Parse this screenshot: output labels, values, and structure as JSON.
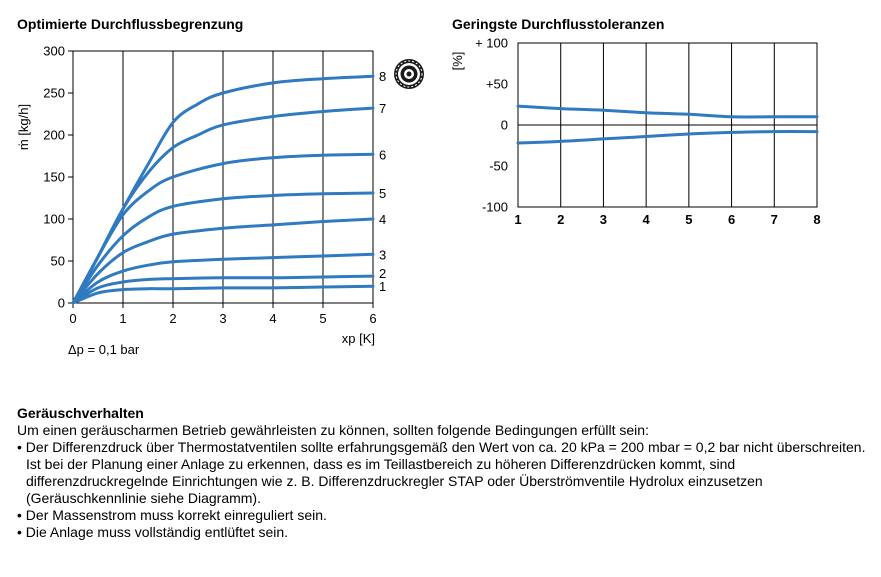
{
  "charts": {
    "left": {
      "title": "Optimierte Durchflussbegrenzung",
      "ylabel": "ṁ [kg/h]",
      "xlabel": "xp [K]",
      "note": "Δp = 0,1 bar"
    },
    "right": {
      "title": "Geringste Durchflusstoleranzen",
      "ylabel": "[%]"
    }
  },
  "chart_data": [
    {
      "type": "line",
      "title": "Optimierte Durchflussbegrenzung",
      "xlabel": "xp [K]",
      "ylabel": "ṁ [kg/h]",
      "xlim": [
        0,
        6
      ],
      "ylim": [
        0,
        300
      ],
      "xticks": [
        "0",
        "1",
        "2",
        "3",
        "4",
        "5",
        "6"
      ],
      "yticks": [
        "0",
        "50",
        "100",
        "150",
        "200",
        "250",
        "300"
      ],
      "vertical_grid": true,
      "line_color": "#2f7ac0",
      "annotation": "Δp = 0,1 bar",
      "series": [
        {
          "name": "1",
          "x": [
            0,
            0.5,
            1,
            1.5,
            2,
            3,
            4,
            5,
            6
          ],
          "values": [
            0,
            12,
            16,
            17,
            17,
            18,
            18,
            19,
            20
          ]
        },
        {
          "name": "2",
          "x": [
            0,
            0.5,
            1,
            1.5,
            2,
            3,
            4,
            5,
            6
          ],
          "values": [
            0,
            18,
            25,
            28,
            29,
            30,
            30,
            31,
            32
          ]
        },
        {
          "name": "3",
          "x": [
            0,
            0.5,
            1,
            1.5,
            2,
            3,
            4,
            5,
            6
          ],
          "values": [
            0,
            25,
            38,
            45,
            49,
            52,
            54,
            56,
            58
          ]
        },
        {
          "name": "4",
          "x": [
            0,
            0.5,
            1,
            1.5,
            2,
            3,
            4,
            5,
            6
          ],
          "values": [
            0,
            35,
            60,
            73,
            82,
            89,
            93,
            97,
            100
          ]
        },
        {
          "name": "5",
          "x": [
            0,
            0.5,
            1,
            1.5,
            2,
            3,
            4,
            5,
            6
          ],
          "values": [
            0,
            45,
            80,
            102,
            115,
            124,
            128,
            130,
            131
          ]
        },
        {
          "name": "6",
          "x": [
            0,
            0.5,
            1,
            1.5,
            2,
            3,
            4,
            5,
            6
          ],
          "values": [
            0,
            55,
            105,
            133,
            150,
            166,
            173,
            176,
            177
          ]
        },
        {
          "name": "7",
          "x": [
            0,
            0.5,
            1,
            1.5,
            2,
            2.5,
            3,
            4,
            5,
            6
          ],
          "values": [
            0,
            55,
            112,
            155,
            185,
            200,
            212,
            222,
            228,
            232
          ]
        },
        {
          "name": "8",
          "x": [
            0,
            0.5,
            1,
            1.5,
            2,
            2.5,
            3,
            4,
            5,
            6
          ],
          "values": [
            0,
            55,
            112,
            165,
            215,
            237,
            250,
            262,
            267,
            270
          ]
        }
      ]
    },
    {
      "type": "line",
      "title": "Geringste Durchflusstoleranzen",
      "ylabel": "[%]",
      "xlim": [
        1,
        8
      ],
      "ylim": [
        -100,
        100
      ],
      "xticks": [
        "1",
        "2",
        "3",
        "4",
        "5",
        "6",
        "7",
        "8"
      ],
      "yticks": [
        "+ 100",
        "+50",
        "0",
        "-50",
        "-100"
      ],
      "vertical_grid": true,
      "zero_line": true,
      "line_color": "#2f7ac0",
      "series": [
        {
          "x": [
            1,
            2,
            3,
            4,
            5,
            6,
            7,
            8
          ],
          "values": [
            23,
            20,
            18,
            15,
            13,
            10,
            10,
            10
          ]
        },
        {
          "x": [
            1,
            2,
            3,
            4,
            5,
            6,
            7,
            8
          ],
          "values": [
            -22,
            -20,
            -17,
            -14,
            -11,
            -9,
            -8,
            -8
          ]
        }
      ]
    }
  ],
  "section": {
    "heading": "Geräuschverhalten",
    "intro": "Um einen geräuscharmen Betrieb gewährleisten zu können, sollten folgende Bedingungen erfüllt sein:",
    "bullets": [
      "Der Differenzdruck über Thermostatventilen sollte erfahrungsgemäß den Wert von ca. 20 kPa = 200 mbar = 0,2 bar nicht überschreiten. Ist bei der Planung einer Anlage zu erkennen, dass es im Teillastbereich zu höheren Differenzdrücken kommt, sind differenzdruckregelnde Einrichtungen wie z. B. Differenzdruckregler STAP oder Überströmventile Hydrolux einzusetzen (Geräuschkennlinie siehe Diagramm).",
      "Der Massenstrom muss korrekt einreguliert sein.",
      "Die Anlage muss vollständig entlüftet sein."
    ]
  }
}
